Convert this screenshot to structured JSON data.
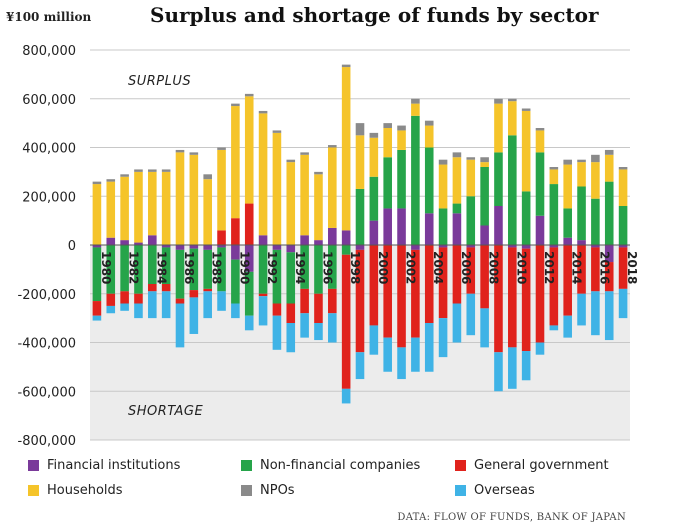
{
  "header": {
    "unit_label": "¥100 million",
    "title": "Surplus and shortage of funds by sector"
  },
  "source": "DATA: FLOW OF FUNDS, BANK OF JAPAN",
  "colors": {
    "financial_institutions": "#7a3a9a",
    "non_financial_companies": "#26a44a",
    "general_government": "#e0221c",
    "households": "#f5c42a",
    "npos": "#8a8a8a",
    "overseas": "#3fb3e6",
    "shortage_background": "#ececec",
    "grid": "#c8c8c8"
  },
  "chart_data": {
    "type": "bar",
    "stacked": true,
    "title": "Surplus and shortage of funds by sector",
    "ylabel": "¥100 million",
    "ylim": [
      -800000,
      800000
    ],
    "yticks": [
      -800000,
      -600000,
      -400000,
      -200000,
      0,
      200000,
      400000,
      600000,
      800000
    ],
    "ytick_labels": [
      "-800,000",
      "-600,000",
      "-400,000",
      "-200,000",
      "0",
      "200,000",
      "400,000",
      "600,000",
      "800,000"
    ],
    "annotations": [
      "SURPLUS",
      "SHORTAGE"
    ],
    "grid": true,
    "legend_position": "bottom",
    "categories": [
      "1980",
      "1981",
      "1982",
      "1983",
      "1984",
      "1985",
      "1986",
      "1987",
      "1988",
      "1989",
      "1990",
      "1991",
      "1992",
      "1993",
      "1994",
      "1995",
      "1996",
      "1997",
      "1998",
      "1999",
      "2000",
      "2001",
      "2002",
      "2003",
      "2004",
      "2005",
      "2006",
      "2007",
      "2008",
      "2009",
      "2010",
      "2011",
      "2012",
      "2013",
      "2014",
      "2015",
      "2016",
      "2017",
      "2018"
    ],
    "tick_labels": [
      "1980",
      "1982",
      "1984",
      "1986",
      "1988",
      "1990",
      "1992",
      "1994",
      "1996",
      "1998",
      "2000",
      "2002",
      "2004",
      "2006",
      "2008",
      "2010",
      "2012",
      "2014",
      "2016",
      "2018"
    ],
    "series": [
      {
        "name": "Financial institutions",
        "values": [
          -10000,
          30000,
          20000,
          10000,
          40000,
          -10000,
          -20000,
          -15000,
          -20000,
          -10000,
          -60000,
          -110000,
          40000,
          -20000,
          -30000,
          40000,
          20000,
          70000,
          60000,
          -20000,
          100000,
          150000,
          150000,
          -20000,
          130000,
          -10000,
          130000,
          -10000,
          80000,
          160000,
          -10000,
          -15000,
          120000,
          -10000,
          30000,
          20000,
          -10000,
          -70000,
          -10000
        ]
      },
      {
        "name": "Non-financial companies",
        "values": [
          -220000,
          -200000,
          -190000,
          -200000,
          -160000,
          -150000,
          -200000,
          -170000,
          -160000,
          -180000,
          -180000,
          -180000,
          -200000,
          -220000,
          -210000,
          -180000,
          -200000,
          -180000,
          -40000,
          230000,
          180000,
          210000,
          240000,
          530000,
          270000,
          150000,
          40000,
          200000,
          240000,
          220000,
          450000,
          220000,
          260000,
          250000,
          120000,
          220000,
          190000,
          260000,
          160000
        ]
      },
      {
        "name": "General government",
        "values": [
          -60000,
          -50000,
          -50000,
          -40000,
          -30000,
          -30000,
          -20000,
          -30000,
          -10000,
          60000,
          110000,
          170000,
          -10000,
          -50000,
          -80000,
          -100000,
          -120000,
          -100000,
          -550000,
          -420000,
          -330000,
          -380000,
          -420000,
          -360000,
          -320000,
          -290000,
          -240000,
          -190000,
          -260000,
          -440000,
          -410000,
          -420000,
          -400000,
          -320000,
          -290000,
          -200000,
          -180000,
          -120000,
          -170000
        ]
      },
      {
        "name": "Households",
        "values": [
          250000,
          230000,
          260000,
          290000,
          260000,
          300000,
          380000,
          370000,
          270000,
          330000,
          460000,
          440000,
          500000,
          460000,
          340000,
          330000,
          270000,
          330000,
          670000,
          220000,
          160000,
          120000,
          80000,
          50000,
          90000,
          180000,
          190000,
          150000,
          20000,
          200000,
          140000,
          330000,
          90000,
          60000,
          180000,
          100000,
          150000,
          110000,
          150000
        ]
      },
      {
        "name": "NPOs",
        "values": [
          10000,
          10000,
          10000,
          10000,
          10000,
          10000,
          10000,
          10000,
          20000,
          10000,
          10000,
          10000,
          10000,
          10000,
          10000,
          10000,
          10000,
          10000,
          10000,
          50000,
          20000,
          20000,
          20000,
          20000,
          20000,
          20000,
          20000,
          10000,
          20000,
          20000,
          10000,
          10000,
          10000,
          10000,
          20000,
          10000,
          30000,
          20000,
          10000
        ]
      },
      {
        "name": "Overseas",
        "values": [
          -20000,
          -30000,
          -30000,
          -60000,
          -110000,
          -110000,
          -180000,
          -150000,
          -110000,
          -80000,
          -60000,
          -60000,
          -120000,
          -140000,
          -120000,
          -100000,
          -70000,
          -120000,
          -60000,
          -110000,
          -120000,
          -140000,
          -130000,
          -140000,
          -200000,
          -160000,
          -160000,
          -170000,
          -160000,
          -160000,
          -170000,
          -120000,
          -50000,
          -20000,
          -90000,
          -130000,
          -180000,
          -200000,
          -120000
        ]
      }
    ]
  },
  "legend": [
    {
      "label": "Financial institutions",
      "color": "#7a3a9a"
    },
    {
      "label": "Non-financial companies",
      "color": "#26a44a"
    },
    {
      "label": "General government",
      "color": "#e0221c"
    },
    {
      "label": "Households",
      "color": "#f5c42a"
    },
    {
      "label": "NPOs",
      "color": "#8a8a8a"
    },
    {
      "label": "Overseas",
      "color": "#3fb3e6"
    }
  ]
}
